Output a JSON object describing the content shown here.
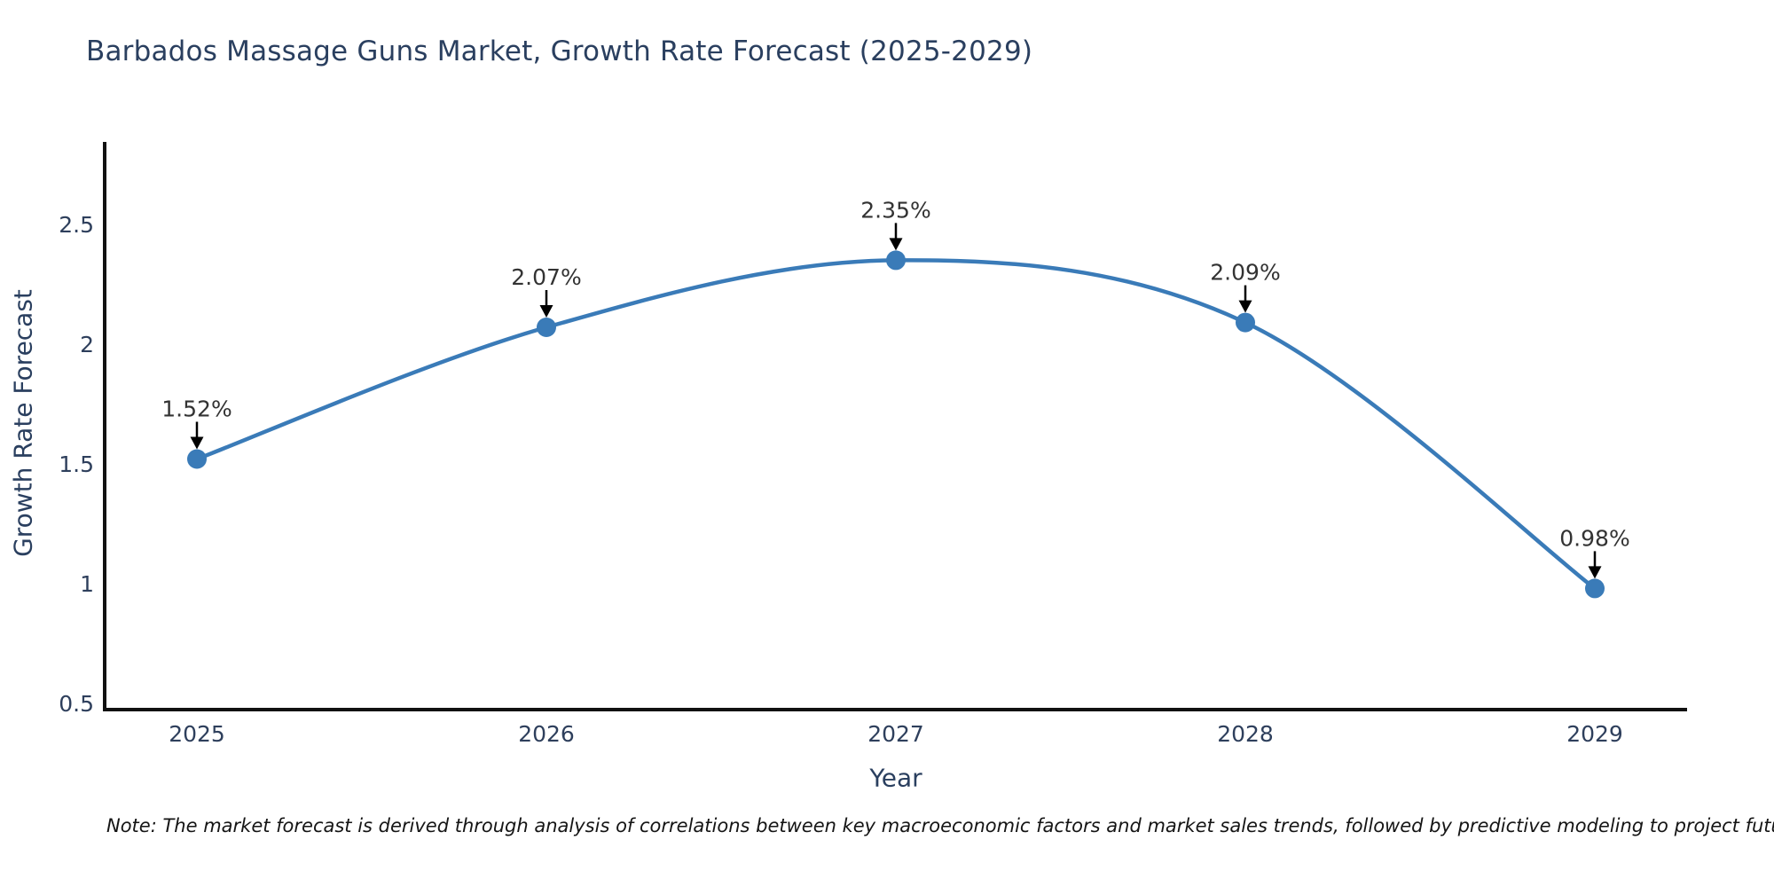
{
  "chart_data": {
    "type": "line",
    "title": "Barbados Massage Guns Market, Growth Rate Forecast (2025-2029)",
    "xlabel": "Year",
    "ylabel": "Growth Rate Forecast",
    "categories": [
      "2025",
      "2026",
      "2027",
      "2028",
      "2029"
    ],
    "series": [
      {
        "name": "Growth Rate Forecast",
        "values": [
          1.52,
          2.07,
          2.35,
          2.09,
          0.98
        ]
      }
    ],
    "point_labels": [
      "1.52%",
      "2.07%",
      "2.35%",
      "2.09%",
      "0.98%"
    ],
    "ytick_labels": [
      "0.5",
      "1",
      "1.5",
      "2",
      "2.5"
    ],
    "ytick_values": [
      0.5,
      1,
      1.5,
      2,
      2.5
    ],
    "ylim": [
      0.474,
      2.844
    ],
    "curve": "spline",
    "grid": false,
    "legend": false,
    "colors": {
      "line": "#3a7bb8",
      "marker": "#3a7bb8",
      "arrow": "#000000",
      "axis": "#111111",
      "tick_label": "#2e3f5c",
      "axis_title": "#2a3f5f",
      "title": "#2a3f5f",
      "annotation_text": "#333333",
      "background": "#ffffff"
    }
  },
  "footnote": "Note: The market forecast is derived through analysis of correlations between key macroeconomic factors and market sales trends, followed by predictive modeling to project future sales"
}
